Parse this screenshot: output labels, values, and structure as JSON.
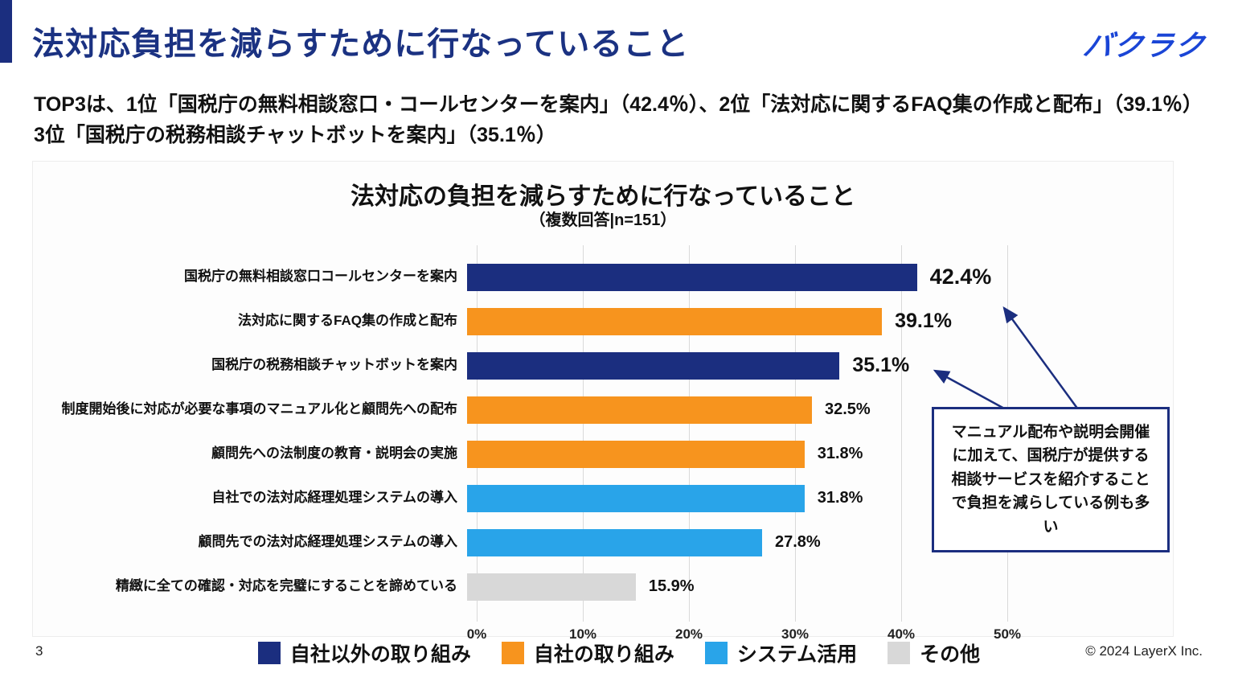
{
  "page": {
    "title": "法対応負担を減らすために行なっていること",
    "logo": "バクラク",
    "intro": "TOP3は、1位「国税庁の無料相談窓口・コールセンターを案内」（42.4％）、2位「法対応に関するFAQ集の作成と配布」（39.1％）3位「国税庁の税務相談チャットボットを案内」（35.1％）",
    "page_number": "3",
    "copyright": "© 2024 LayerX Inc."
  },
  "colors": {
    "navy": "#1b2e7f",
    "orange": "#f7941e",
    "blue": "#29a4e9",
    "gray": "#d8d8d8",
    "grid": "#d9d9d9",
    "callout_border": "#1b2e7f",
    "title_blue": "#1b3282",
    "logo_blue": "#1a45d6"
  },
  "chart_data": {
    "type": "bar",
    "orientation": "horizontal",
    "title": "法対応の負担を減らすために行なっていること",
    "subtitle": "（複数回答|n=151）",
    "xlim": [
      0,
      50
    ],
    "x_ticks": [
      "0%",
      "10%",
      "20%",
      "30%",
      "40%",
      "50%"
    ],
    "grid": true,
    "legend_position": "bottom",
    "categories": [
      "国税庁の無料相談窓口コールセンターを案内",
      "法対応に関するFAQ集の作成と配布",
      "国税庁の税務相談チャットボットを案内",
      "制度開始後に対応が必要な事項のマニュアル化と顧問先への配布",
      "顧問先への法制度の教育・説明会の実施",
      "自社での法対応経理処理システムの導入",
      "顧問先での法対応経理処理システムの導入",
      "精緻に全ての確認・対応を完璧にすることを諦めている"
    ],
    "values": [
      42.4,
      39.1,
      35.1,
      32.5,
      31.8,
      31.8,
      27.8,
      15.9
    ],
    "value_labels": [
      "42.4%",
      "39.1%",
      "35.1%",
      "32.5%",
      "31.8%",
      "31.8%",
      "27.8%",
      "15.9%"
    ],
    "value_label_sizes": [
      "lg",
      "md",
      "md",
      "sm",
      "sm",
      "sm",
      "sm",
      "sm"
    ],
    "bar_colors": [
      "navy",
      "orange",
      "navy",
      "orange",
      "orange",
      "blue",
      "blue",
      "gray"
    ],
    "legend": [
      {
        "label": "自社以外の取り組み",
        "color_key": "navy"
      },
      {
        "label": "自社の取り組み",
        "color_key": "orange"
      },
      {
        "label": "システム活用",
        "color_key": "blue"
      },
      {
        "label": "その他",
        "color_key": "gray"
      }
    ]
  },
  "callout": {
    "text": "マニュアル配布や説明会開催に加えて、国税庁が提供する相談サービスを紹介することで負担を減らしている例も多い"
  }
}
